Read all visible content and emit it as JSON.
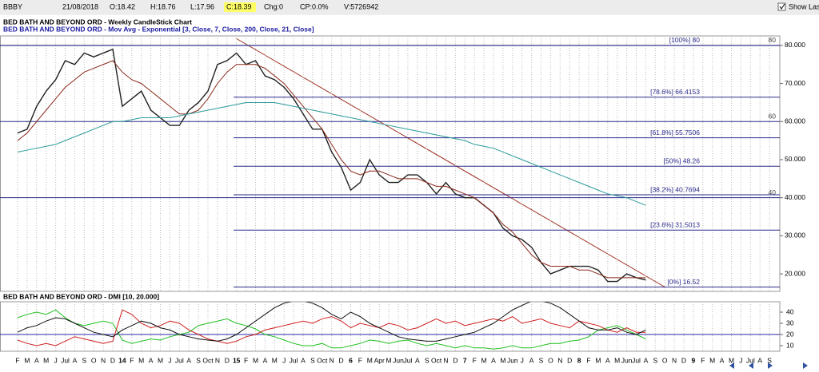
{
  "header": {
    "symbol": "BBBY",
    "date": "21/08/2018",
    "open": "O:18.42",
    "high": "H:18.76",
    "low": "L:17.96",
    "close": "C:18.39",
    "change": "Chg:0",
    "change_pct": "CP:0.0%",
    "volume": "V:5726942",
    "show_last": "Show Last"
  },
  "chart_data": [
    {
      "type": "line",
      "title": "BED BATH AND BEYOND ORD - Weekly CandleStick Chart",
      "subtitle": "BED BATH AND BEYOND ORD - Mov Avg - Exponential [3, Close, 7, Close, 200, Close, 21, Close]",
      "ylim": [
        15.4,
        82.5
      ],
      "yticks": [
        {
          "value": 80,
          "label": "80.000"
        },
        {
          "value": 70,
          "label": "70.000"
        },
        {
          "value": 60,
          "label": "60.000"
        },
        {
          "value": 50,
          "label": "50.000"
        },
        {
          "value": 40,
          "label": "40.000"
        },
        {
          "value": 30,
          "label": "30.000"
        },
        {
          "value": 20,
          "label": "20.000"
        }
      ],
      "hlines": [
        80,
        60,
        40
      ],
      "fib_levels": [
        {
          "label": "[100%] 80",
          "value": 80
        },
        {
          "label": "[78.6%] 66.4153",
          "value": 66.4153
        },
        {
          "label": "[61.8%] 55.7506",
          "value": 55.7506
        },
        {
          "label": "[50%] 48.26",
          "value": 48.26
        },
        {
          "label": "[38.2%] 40.7694",
          "value": 40.7694
        },
        {
          "label": "[23.6%] 31.5013",
          "value": 31.5013
        },
        {
          "label": "[0%] 16.52",
          "value": 16.52
        }
      ],
      "series": [
        {
          "color": "#202020",
          "values": [
            57,
            58,
            64,
            68,
            71,
            76,
            75,
            78,
            77,
            78,
            79,
            64,
            66,
            68,
            63,
            61,
            59,
            59,
            63,
            65,
            68,
            75,
            76,
            78,
            75,
            76,
            72,
            71,
            69,
            66,
            62,
            58,
            58,
            52,
            48,
            42,
            44,
            50,
            46,
            44,
            44,
            46,
            46,
            44,
            41,
            44,
            41,
            40,
            40,
            38,
            36,
            32,
            30,
            29,
            27,
            23,
            20,
            21,
            22,
            22,
            22,
            21,
            18,
            18,
            20,
            19,
            18.39,
            null,
            null,
            null,
            null,
            null,
            null,
            null,
            null,
            null,
            null,
            null,
            null,
            null
          ]
        },
        {
          "color": "#8b2a1a",
          "values": [
            55,
            57,
            60,
            63,
            66,
            69,
            71,
            73,
            74,
            75,
            76,
            73,
            71,
            70,
            68,
            66,
            64,
            62,
            62,
            63,
            66,
            70,
            73,
            75,
            75,
            75,
            74,
            72,
            70,
            67,
            64,
            61,
            58,
            54,
            50,
            47,
            46,
            47,
            47,
            46,
            45,
            45,
            45,
            44,
            43,
            43,
            42,
            41,
            40,
            38,
            36,
            33,
            31,
            28,
            25,
            23,
            22,
            22,
            22,
            21,
            21,
            20,
            19,
            19,
            19,
            19,
            19,
            null,
            null,
            null,
            null,
            null,
            null,
            null,
            null,
            null,
            null,
            null,
            null,
            null
          ]
        },
        {
          "color": "#2a9a9a",
          "values": [
            52,
            52.5,
            53,
            53.5,
            54,
            55,
            56,
            57,
            58,
            59,
            60,
            60,
            60.5,
            61,
            61,
            61,
            61,
            61.5,
            62,
            62.5,
            63,
            63.5,
            64,
            64.5,
            65,
            65,
            65,
            65,
            64.5,
            64,
            63.5,
            63,
            62.5,
            62,
            61.5,
            61,
            60.5,
            60,
            59.5,
            59,
            58.5,
            58,
            57.5,
            57,
            56.5,
            56,
            55.5,
            55,
            54,
            53.5,
            53,
            52,
            51,
            50,
            49,
            48,
            47,
            46,
            45,
            44,
            43,
            42,
            41,
            40.5,
            40,
            39,
            38,
            null,
            null,
            null,
            null,
            null,
            null,
            null,
            null,
            null,
            null,
            null,
            null,
            null
          ]
        }
      ]
    },
    {
      "type": "line",
      "title": "BED BATH AND BEYOND ORD - DMI [10, 20.000]",
      "ylim": [
        5,
        49.3
      ],
      "yticks": [
        40,
        30,
        20,
        10
      ],
      "hline": 20,
      "categories": [
        "F",
        "M",
        "A",
        "M",
        "J",
        "Jul",
        "A",
        "S",
        "O",
        "N",
        "D",
        "14",
        "F",
        "M",
        "A",
        "M",
        "J",
        "Jul",
        "A",
        "S",
        "Oct",
        "N",
        "D",
        "15",
        "F",
        "M",
        "A",
        "M",
        "J",
        "Jul",
        "A",
        "S",
        "Oct",
        "N",
        "D",
        "6",
        "F",
        "M",
        "Apr",
        "M",
        "Jun",
        "Jul",
        "A",
        "S",
        "Oct",
        "N",
        "D",
        "7",
        "F",
        "M",
        "A",
        "M",
        "Jun",
        "J",
        "A",
        "S",
        "O",
        "N",
        "D",
        "8",
        "F",
        "M",
        "A",
        "M",
        "Jun",
        "Jul",
        "A",
        "S",
        "O",
        "N",
        "D",
        "9",
        "F",
        "M",
        "A",
        "M",
        "J",
        "Jul",
        "A",
        "S"
      ],
      "series": [
        {
          "color": "#20c020",
          "values": [
            35,
            38,
            40,
            38,
            42,
            35,
            30,
            28,
            30,
            32,
            30,
            15,
            12,
            14,
            16,
            15,
            18,
            20,
            22,
            28,
            30,
            32,
            34,
            30,
            28,
            25,
            20,
            18,
            15,
            12,
            10,
            10,
            12,
            8,
            8,
            10,
            12,
            15,
            14,
            12,
            14,
            15,
            12,
            10,
            12,
            10,
            8,
            10,
            8,
            8,
            7,
            8,
            10,
            8,
            8,
            10,
            12,
            12,
            14,
            15,
            18,
            24,
            26,
            28,
            24,
            20,
            16,
            null,
            null,
            null,
            null,
            null,
            null,
            null,
            null,
            null,
            null,
            null,
            null,
            null
          ]
        },
        {
          "color": "#d02020",
          "values": [
            15,
            12,
            10,
            12,
            10,
            14,
            18,
            16,
            14,
            12,
            14,
            42,
            38,
            30,
            26,
            28,
            32,
            30,
            24,
            20,
            16,
            14,
            12,
            14,
            18,
            20,
            24,
            26,
            28,
            30,
            32,
            30,
            34,
            36,
            32,
            26,
            30,
            28,
            26,
            30,
            28,
            24,
            26,
            30,
            34,
            30,
            32,
            28,
            30,
            32,
            34,
            32,
            36,
            30,
            32,
            34,
            30,
            28,
            26,
            32,
            30,
            28,
            24,
            22,
            26,
            22,
            22,
            null,
            null,
            null,
            null,
            null,
            null,
            null,
            null,
            null,
            null,
            null,
            null,
            null
          ]
        },
        {
          "color": "#101010",
          "values": [
            22,
            26,
            28,
            32,
            35,
            34,
            30,
            26,
            22,
            20,
            18,
            24,
            28,
            32,
            30,
            26,
            24,
            20,
            18,
            16,
            15,
            14,
            16,
            20,
            26,
            32,
            38,
            44,
            48,
            50,
            50,
            48,
            44,
            38,
            34,
            40,
            36,
            30,
            26,
            22,
            18,
            16,
            15,
            14,
            14,
            16,
            18,
            20,
            22,
            26,
            30,
            36,
            42,
            46,
            50,
            50,
            48,
            44,
            38,
            32,
            26,
            24,
            24,
            26,
            22,
            20,
            24,
            null,
            null,
            null,
            null,
            null,
            null,
            null,
            null,
            null,
            null,
            null,
            null,
            null
          ]
        }
      ]
    }
  ]
}
